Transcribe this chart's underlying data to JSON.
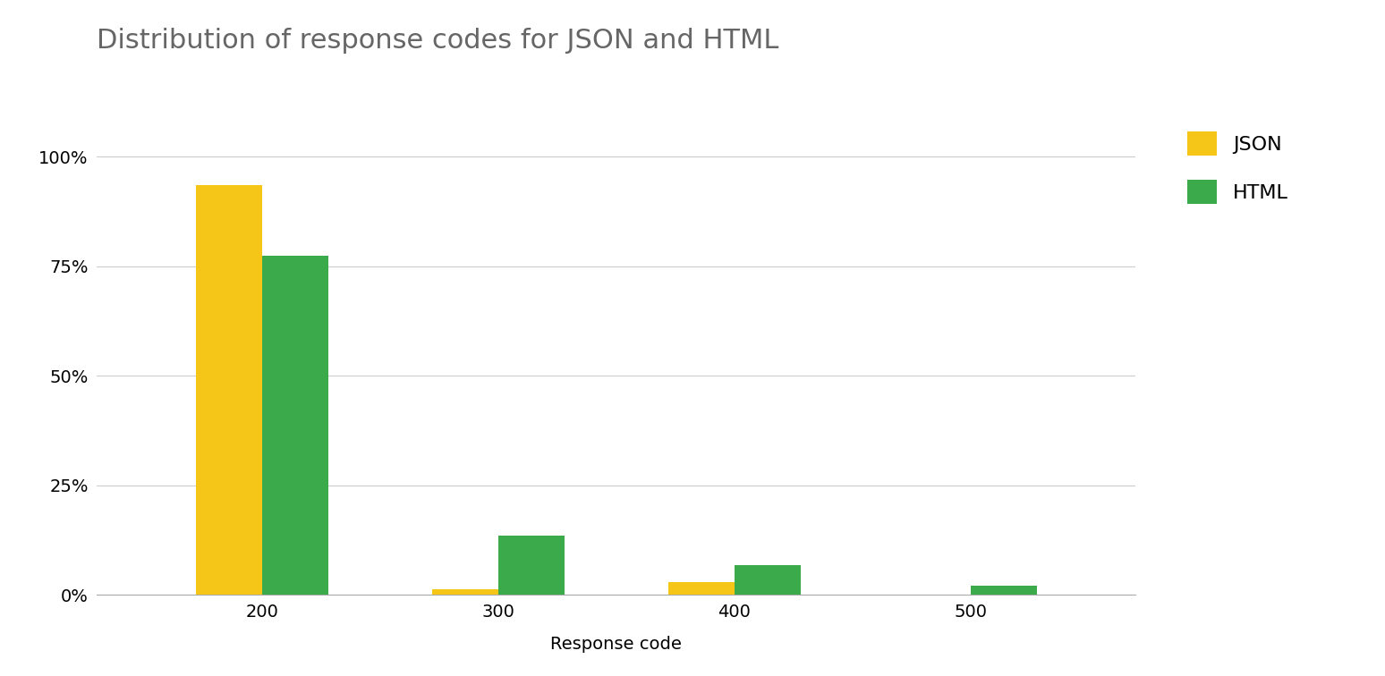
{
  "title": "Distribution of response codes for JSON and HTML",
  "xlabel": "Response code",
  "categories": [
    "200",
    "300",
    "400",
    "500"
  ],
  "json_values": [
    0.935,
    0.013,
    0.03,
    0.0
  ],
  "html_values": [
    0.775,
    0.135,
    0.068,
    0.022
  ],
  "json_color": "#F5C518",
  "html_color": "#3BAA4A",
  "legend_labels": [
    "JSON",
    "HTML"
  ],
  "ylim": [
    0,
    1.08
  ],
  "yticks": [
    0,
    0.25,
    0.5,
    0.75,
    1.0
  ],
  "ytick_labels": [
    "0%",
    "25%",
    "50%",
    "75%",
    "100%"
  ],
  "bar_width": 0.28,
  "title_fontsize": 22,
  "label_fontsize": 14,
  "tick_fontsize": 14,
  "legend_fontsize": 16,
  "background_color": "#ffffff",
  "grid_color": "#cccccc",
  "title_color": "#666666"
}
